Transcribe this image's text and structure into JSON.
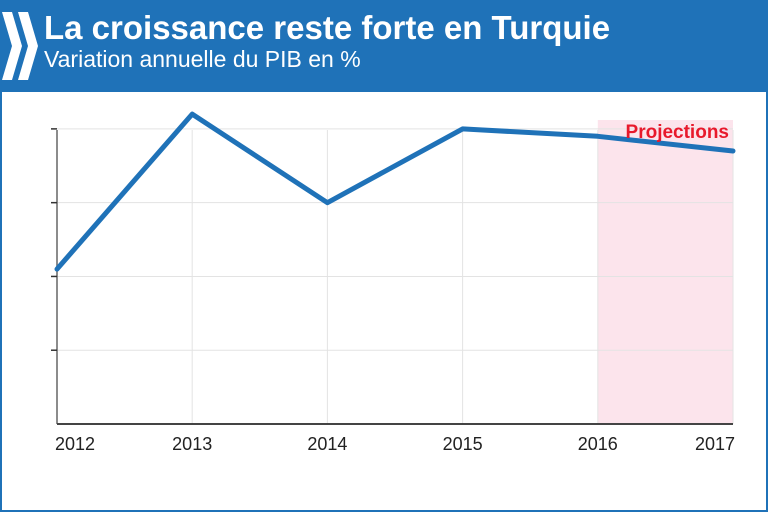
{
  "header": {
    "title": "La croissance reste forte en Turquie",
    "subtitle": "Variation annuelle du PIB en %"
  },
  "colors": {
    "brand": "#1f72b8",
    "line": "#1f72b8",
    "projection_band": "#fce4ec",
    "projection_text": "#e8192c"
  },
  "chart_data": {
    "type": "line",
    "title": "La croissance reste forte en Turquie",
    "subtitle": "Variation annuelle du PIB en %",
    "xlabel": "",
    "ylabel": "",
    "x": [
      "2012",
      "2013",
      "2014",
      "2015",
      "2016",
      "2017"
    ],
    "series": [
      {
        "values": [
          2.1,
          4.2,
          3.0,
          4.0,
          3.9,
          3.7
        ]
      }
    ],
    "ylim": [
      0,
      4.5
    ],
    "y_tick_values": [
      1,
      2,
      3,
      4
    ],
    "y_tick_labels_shown": false,
    "grid": true,
    "projection": {
      "label": "Projections",
      "from": "2016",
      "to": "2017"
    }
  }
}
